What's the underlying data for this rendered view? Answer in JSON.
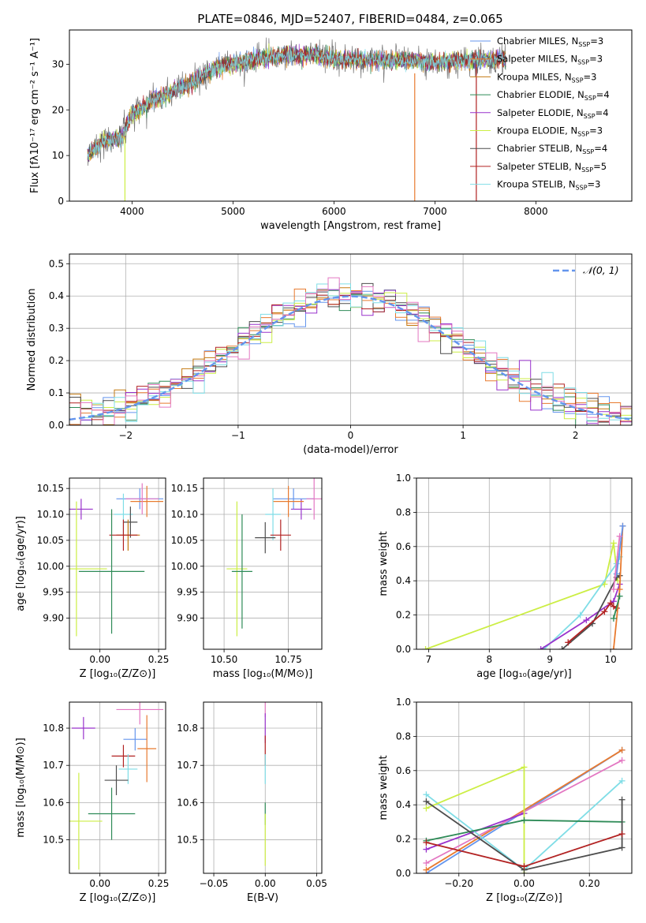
{
  "figure_title": "PLATE=0846, MJD=52407, FIBERID=0484, z=0.065",
  "colors": [
    "#6495ed",
    "#e87a2f",
    "#c47a12",
    "#2e8b57",
    "#9932cc",
    "#f0e68c",
    "#4d4d4d",
    "#b22222",
    "#7fdde6",
    "#e377c2",
    "#ccee44"
  ],
  "chart_data": [
    {
      "id": "spectrum",
      "type": "line",
      "title": "PLATE=0846, MJD=52407, FIBERID=0484, z=0.065",
      "xlabel": "wavelength [Angstrom, rest frame]",
      "ylabel": "Flux [fλ10⁻¹⁷ erg cm⁻² s⁻¹ A⁻¹]",
      "xlim": [
        3380,
        8950
      ],
      "ylim": [
        0,
        37.5
      ],
      "xticks": [
        4000,
        5000,
        6000,
        7000,
        8000
      ],
      "yticks": [
        0,
        10,
        20,
        30
      ],
      "grid": false,
      "legend_position": "right",
      "legend": [
        "Chabrier MILES, N_SSP=3",
        "Salpeter MILES, N_SSP=3",
        "Kroupa MILES, N_SSP=3",
        "Chabrier ELODIE, N_SSP=4",
        "Salpeter ELODIE, N_SSP=4",
        "Kroupa ELODIE, N_SSP=3",
        "Chabrier STELIB, N_SSP=4",
        "Salpeter STELIB, N_SSP=5",
        "Kroupa STELIB, N_SSP=3"
      ],
      "continuum_x": [
        3560,
        3700,
        3900,
        4000,
        4200,
        4400,
        4600,
        4800,
        5000,
        5200,
        5500,
        5800,
        6000,
        6500,
        7000,
        7500,
        7700
      ],
      "continuum_y": [
        10,
        13,
        14,
        19,
        22,
        24,
        26,
        29,
        30,
        31,
        32,
        32,
        31,
        31,
        30.5,
        31,
        31
      ]
    },
    {
      "id": "residuals",
      "type": "histogram",
      "xlabel": "(data-model)/error",
      "ylabel": "Normed distribution",
      "xlim": [
        -2.5,
        2.5
      ],
      "ylim": [
        0,
        0.53
      ],
      "xticks": [
        -2,
        -1,
        0,
        1,
        2
      ],
      "yticks": [
        0.0,
        0.1,
        0.2,
        0.3,
        0.4,
        0.5
      ],
      "grid": true,
      "legend": [
        "𝒩(0, 1)"
      ],
      "legend_position": "top-right",
      "bin_width": 0.1,
      "series_count": 9
    },
    {
      "id": "age-vs-Z",
      "type": "scatter",
      "xlabel": "Z [log₁₀(Z/Z⊙)]",
      "ylabel": "age  [log₁₀(age/yr)]",
      "xlim": [
        -0.13,
        0.28
      ],
      "ylim": [
        9.84,
        10.17
      ],
      "xticks": [
        0.0,
        0.25
      ],
      "yticks": [
        9.9,
        9.95,
        10.0,
        10.05,
        10.1,
        10.15
      ],
      "grid": true,
      "points": [
        {
          "x": -0.08,
          "y": 10.11,
          "xerr": 0.05,
          "yerr": 0.02,
          "c": 4
        },
        {
          "x": 0.17,
          "y": 10.13,
          "xerr": 0.1,
          "yerr": 0.02,
          "c": 0
        },
        {
          "x": 0.2,
          "y": 10.125,
          "xerr": 0.07,
          "yerr": 0.03,
          "c": 1
        },
        {
          "x": 0.18,
          "y": 10.13,
          "xerr": 0.07,
          "yerr": 0.03,
          "c": 9
        },
        {
          "x": 0.1,
          "y": 10.1,
          "xerr": 0.04,
          "yerr": 0.04,
          "c": 8
        },
        {
          "x": 0.13,
          "y": 10.085,
          "xerr": 0.03,
          "yerr": 0.03,
          "c": 6
        },
        {
          "x": 0.12,
          "y": 10.06,
          "xerr": 0.05,
          "yerr": 0.03,
          "c": 2
        },
        {
          "x": 0.1,
          "y": 10.06,
          "xerr": 0.06,
          "yerr": 0.03,
          "c": 7
        },
        {
          "x": -0.1,
          "y": 9.995,
          "xerr": 0.13,
          "yerr": 0.13,
          "c": 10
        },
        {
          "x": 0.05,
          "y": 9.99,
          "xerr": 0.14,
          "yerr": 0.12,
          "c": 3
        }
      ]
    },
    {
      "id": "age-vs-mass",
      "type": "scatter",
      "xlabel": "mass [log₁₀(M/M⊙)]",
      "ylabel": "",
      "xlim": [
        10.42,
        10.88
      ],
      "ylim": [
        9.84,
        10.17
      ],
      "xticks": [
        10.5,
        10.75
      ],
      "yticks": [
        9.9,
        9.95,
        10.0,
        10.05,
        10.1,
        10.15
      ],
      "grid": true,
      "points": [
        {
          "x": 10.8,
          "y": 10.11,
          "xerr": 0.04,
          "yerr": 0.02,
          "c": 4
        },
        {
          "x": 10.77,
          "y": 10.13,
          "xerr": 0.08,
          "yerr": 0.02,
          "c": 0
        },
        {
          "x": 10.75,
          "y": 10.125,
          "xerr": 0.06,
          "yerr": 0.03,
          "c": 1
        },
        {
          "x": 10.85,
          "y": 10.13,
          "xerr": 0.03,
          "yerr": 0.04,
          "c": 9
        },
        {
          "x": 10.69,
          "y": 10.1,
          "xerr": 0.03,
          "yerr": 0.05,
          "c": 8
        },
        {
          "x": 10.66,
          "y": 10.055,
          "xerr": 0.04,
          "yerr": 0.03,
          "c": 6
        },
        {
          "x": 10.72,
          "y": 10.06,
          "xerr": 0.04,
          "yerr": 0.03,
          "c": 7
        },
        {
          "x": 10.55,
          "y": 9.995,
          "xerr": 0.04,
          "yerr": 0.13,
          "c": 10
        },
        {
          "x": 10.57,
          "y": 9.99,
          "xerr": 0.04,
          "yerr": 0.11,
          "c": 3
        }
      ]
    },
    {
      "id": "mass-weight-vs-age",
      "type": "line",
      "xlabel": "age  [log₁₀(age/yr)]",
      "ylabel": "mass weight",
      "xlim": [
        6.8,
        10.35
      ],
      "ylim": [
        0,
        1.0
      ],
      "xticks": [
        7,
        8,
        9,
        10
      ],
      "yticks": [
        0.0,
        0.2,
        0.4,
        0.6,
        0.8,
        1.0
      ],
      "grid": true,
      "series": [
        {
          "c": 10,
          "x": [
            6.95,
            9.9,
            10.05,
            10.12
          ],
          "y": [
            0.0,
            0.38,
            0.62,
            0.4
          ]
        },
        {
          "c": 8,
          "x": [
            8.9,
            9.5,
            10.1,
            10.15
          ],
          "y": [
            0.0,
            0.2,
            0.5,
            0.54
          ]
        },
        {
          "c": 4,
          "x": [
            8.85,
            9.6,
            10.05,
            10.15
          ],
          "y": [
            0.0,
            0.17,
            0.28,
            0.38
          ]
        },
        {
          "c": 6,
          "x": [
            9.2,
            9.7,
            10.1,
            10.15
          ],
          "y": [
            0.0,
            0.15,
            0.42,
            0.43
          ]
        },
        {
          "c": 7,
          "x": [
            9.3,
            9.9,
            10.0,
            10.05,
            10.1
          ],
          "y": [
            0.04,
            0.22,
            0.27,
            0.25,
            0.24
          ]
        },
        {
          "c": 1,
          "x": [
            10.05,
            10.15,
            10.2
          ],
          "y": [
            0.0,
            0.35,
            0.72
          ]
        },
        {
          "c": 0,
          "x": [
            10.1,
            10.2
          ],
          "y": [
            0.44,
            0.72
          ]
        },
        {
          "c": 9,
          "x": [
            10.05,
            10.15
          ],
          "y": [
            0.35,
            0.66
          ]
        },
        {
          "c": 3,
          "x": [
            10.05,
            10.15
          ],
          "y": [
            0.18,
            0.31
          ]
        }
      ]
    },
    {
      "id": "mass-vs-Z",
      "type": "scatter",
      "xlabel": "Z [log₁₀(Z/Z⊙)]",
      "ylabel": "mass [log₁₀(M/M⊙)]",
      "xlim": [
        -0.13,
        0.28
      ],
      "ylim": [
        10.41,
        10.87
      ],
      "xticks": [
        0.0,
        0.25
      ],
      "yticks": [
        10.5,
        10.6,
        10.7,
        10.8
      ],
      "grid": true,
      "points": [
        {
          "x": -0.07,
          "y": 10.8,
          "xerr": 0.05,
          "yerr": 0.03,
          "c": 4
        },
        {
          "x": 0.17,
          "y": 10.85,
          "xerr": 0.1,
          "yerr": 0.04,
          "c": 9
        },
        {
          "x": 0.15,
          "y": 10.77,
          "xerr": 0.05,
          "yerr": 0.03,
          "c": 0
        },
        {
          "x": 0.2,
          "y": 10.745,
          "xerr": 0.04,
          "yerr": 0.09,
          "c": 1
        },
        {
          "x": 0.1,
          "y": 10.725,
          "xerr": 0.05,
          "yerr": 0.03,
          "c": 7
        },
        {
          "x": 0.12,
          "y": 10.69,
          "xerr": 0.04,
          "yerr": 0.04,
          "c": 8
        },
        {
          "x": 0.07,
          "y": 10.66,
          "xerr": 0.05,
          "yerr": 0.04,
          "c": 6
        },
        {
          "x": 0.05,
          "y": 10.57,
          "xerr": 0.1,
          "yerr": 0.07,
          "c": 3
        },
        {
          "x": -0.09,
          "y": 10.55,
          "xerr": 0.1,
          "yerr": 0.13,
          "c": 10
        }
      ]
    },
    {
      "id": "mass-vs-ebv",
      "type": "scatter",
      "xlabel": "E(B-V)",
      "ylabel": "",
      "xlim": [
        -0.06,
        0.055
      ],
      "ylim": [
        10.41,
        10.87
      ],
      "xticks": [
        -0.05,
        0.0,
        0.05
      ],
      "yticks": [
        10.5,
        10.6,
        10.7,
        10.8
      ],
      "grid": true,
      "points": [
        {
          "x": 0.0,
          "y": 10.85,
          "xerr": 0.0,
          "yerr": 0.02,
          "c": 9
        },
        {
          "x": 0.0,
          "y": 10.8,
          "xerr": 0.0,
          "yerr": 0.04,
          "c": 4
        },
        {
          "x": 0.0,
          "y": 10.74,
          "xerr": 0.0,
          "yerr": 0.04,
          "c": 7
        },
        {
          "x": 0.0,
          "y": 10.69,
          "xerr": 0.0,
          "yerr": 0.04,
          "c": 8
        },
        {
          "x": 0.0,
          "y": 10.57,
          "xerr": 0.0,
          "yerr": 0.03,
          "c": 3
        },
        {
          "x": 0.0,
          "y": 10.5,
          "xerr": 0.0,
          "yerr": 0.07,
          "c": 10
        }
      ]
    },
    {
      "id": "mass-weight-vs-Z",
      "type": "line",
      "xlabel": "Z [log₁₀(Z/Z⊙)]",
      "ylabel": "mass weight",
      "xlim": [
        -0.33,
        0.33
      ],
      "ylim": [
        0,
        1.0
      ],
      "xticks": [
        -0.2,
        0.0,
        0.2
      ],
      "yticks": [
        0.0,
        0.2,
        0.4,
        0.6,
        0.8,
        1.0
      ],
      "grid": true,
      "series": [
        {
          "c": 0,
          "x": [
            -0.3,
            0.3
          ],
          "y": [
            0.0,
            0.72
          ]
        },
        {
          "c": 1,
          "x": [
            -0.3,
            0.3
          ],
          "y": [
            0.02,
            0.72
          ]
        },
        {
          "c": 9,
          "x": [
            -0.3,
            0.3
          ],
          "y": [
            0.06,
            0.66
          ]
        },
        {
          "c": 4,
          "x": [
            -0.3,
            0.0
          ],
          "y": [
            0.14,
            0.35
          ]
        },
        {
          "c": 8,
          "x": [
            -0.3,
            0.0,
            0.3
          ],
          "y": [
            0.46,
            0.02,
            0.54
          ]
        },
        {
          "c": 10,
          "x": [
            -0.3,
            0.0,
            0.0
          ],
          "y": [
            0.38,
            0.62,
            0.0
          ]
        },
        {
          "c": 3,
          "x": [
            -0.3,
            0.0,
            0.3
          ],
          "y": [
            0.19,
            0.31,
            0.3
          ]
        },
        {
          "c": 6,
          "x": [
            -0.3,
            0.0,
            0.3,
            0.3
          ],
          "y": [
            0.42,
            0.02,
            0.15,
            0.43
          ]
        },
        {
          "c": 7,
          "x": [
            -0.3,
            0.0,
            0.3
          ],
          "y": [
            0.18,
            0.04,
            0.23
          ]
        }
      ]
    }
  ]
}
